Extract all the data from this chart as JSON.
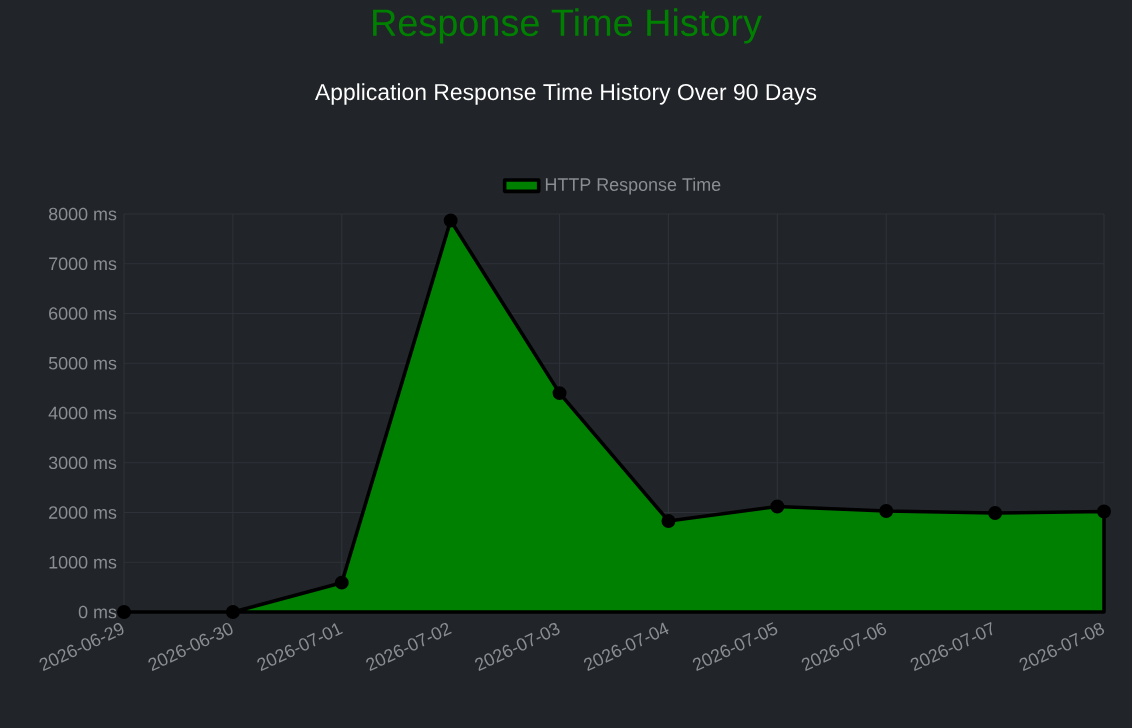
{
  "chart_data": {
    "type": "area",
    "title": "Response Time History",
    "subtitle": "Application Response Time History Over 90 Days",
    "categories": [
      "2026-06-29",
      "2026-06-30",
      "2026-07-01",
      "2026-07-02",
      "2026-07-03",
      "2026-07-04",
      "2026-07-05",
      "2026-07-06",
      "2026-07-07",
      "2026-07-08"
    ],
    "series": [
      {
        "name": "HTTP Response Time",
        "color": "#008000",
        "values": [
          0,
          0,
          590,
          7870,
          4400,
          1830,
          2120,
          2030,
          1990,
          2020
        ]
      }
    ],
    "ylim": [
      0,
      8000
    ],
    "yticks": [
      {
        "value": 0,
        "label": "0 ms"
      },
      {
        "value": 1000,
        "label": "1000 ms"
      },
      {
        "value": 2000,
        "label": "2000 ms"
      },
      {
        "value": 3000,
        "label": "3000 ms"
      },
      {
        "value": 4000,
        "label": "4000 ms"
      },
      {
        "value": 5000,
        "label": "5000 ms"
      },
      {
        "value": 6000,
        "label": "6000 ms"
      },
      {
        "value": 7000,
        "label": "7000 ms"
      },
      {
        "value": 8000,
        "label": "8000 ms"
      }
    ],
    "grid": true,
    "legend": "top",
    "marker": "circle",
    "line_style": "solid"
  }
}
